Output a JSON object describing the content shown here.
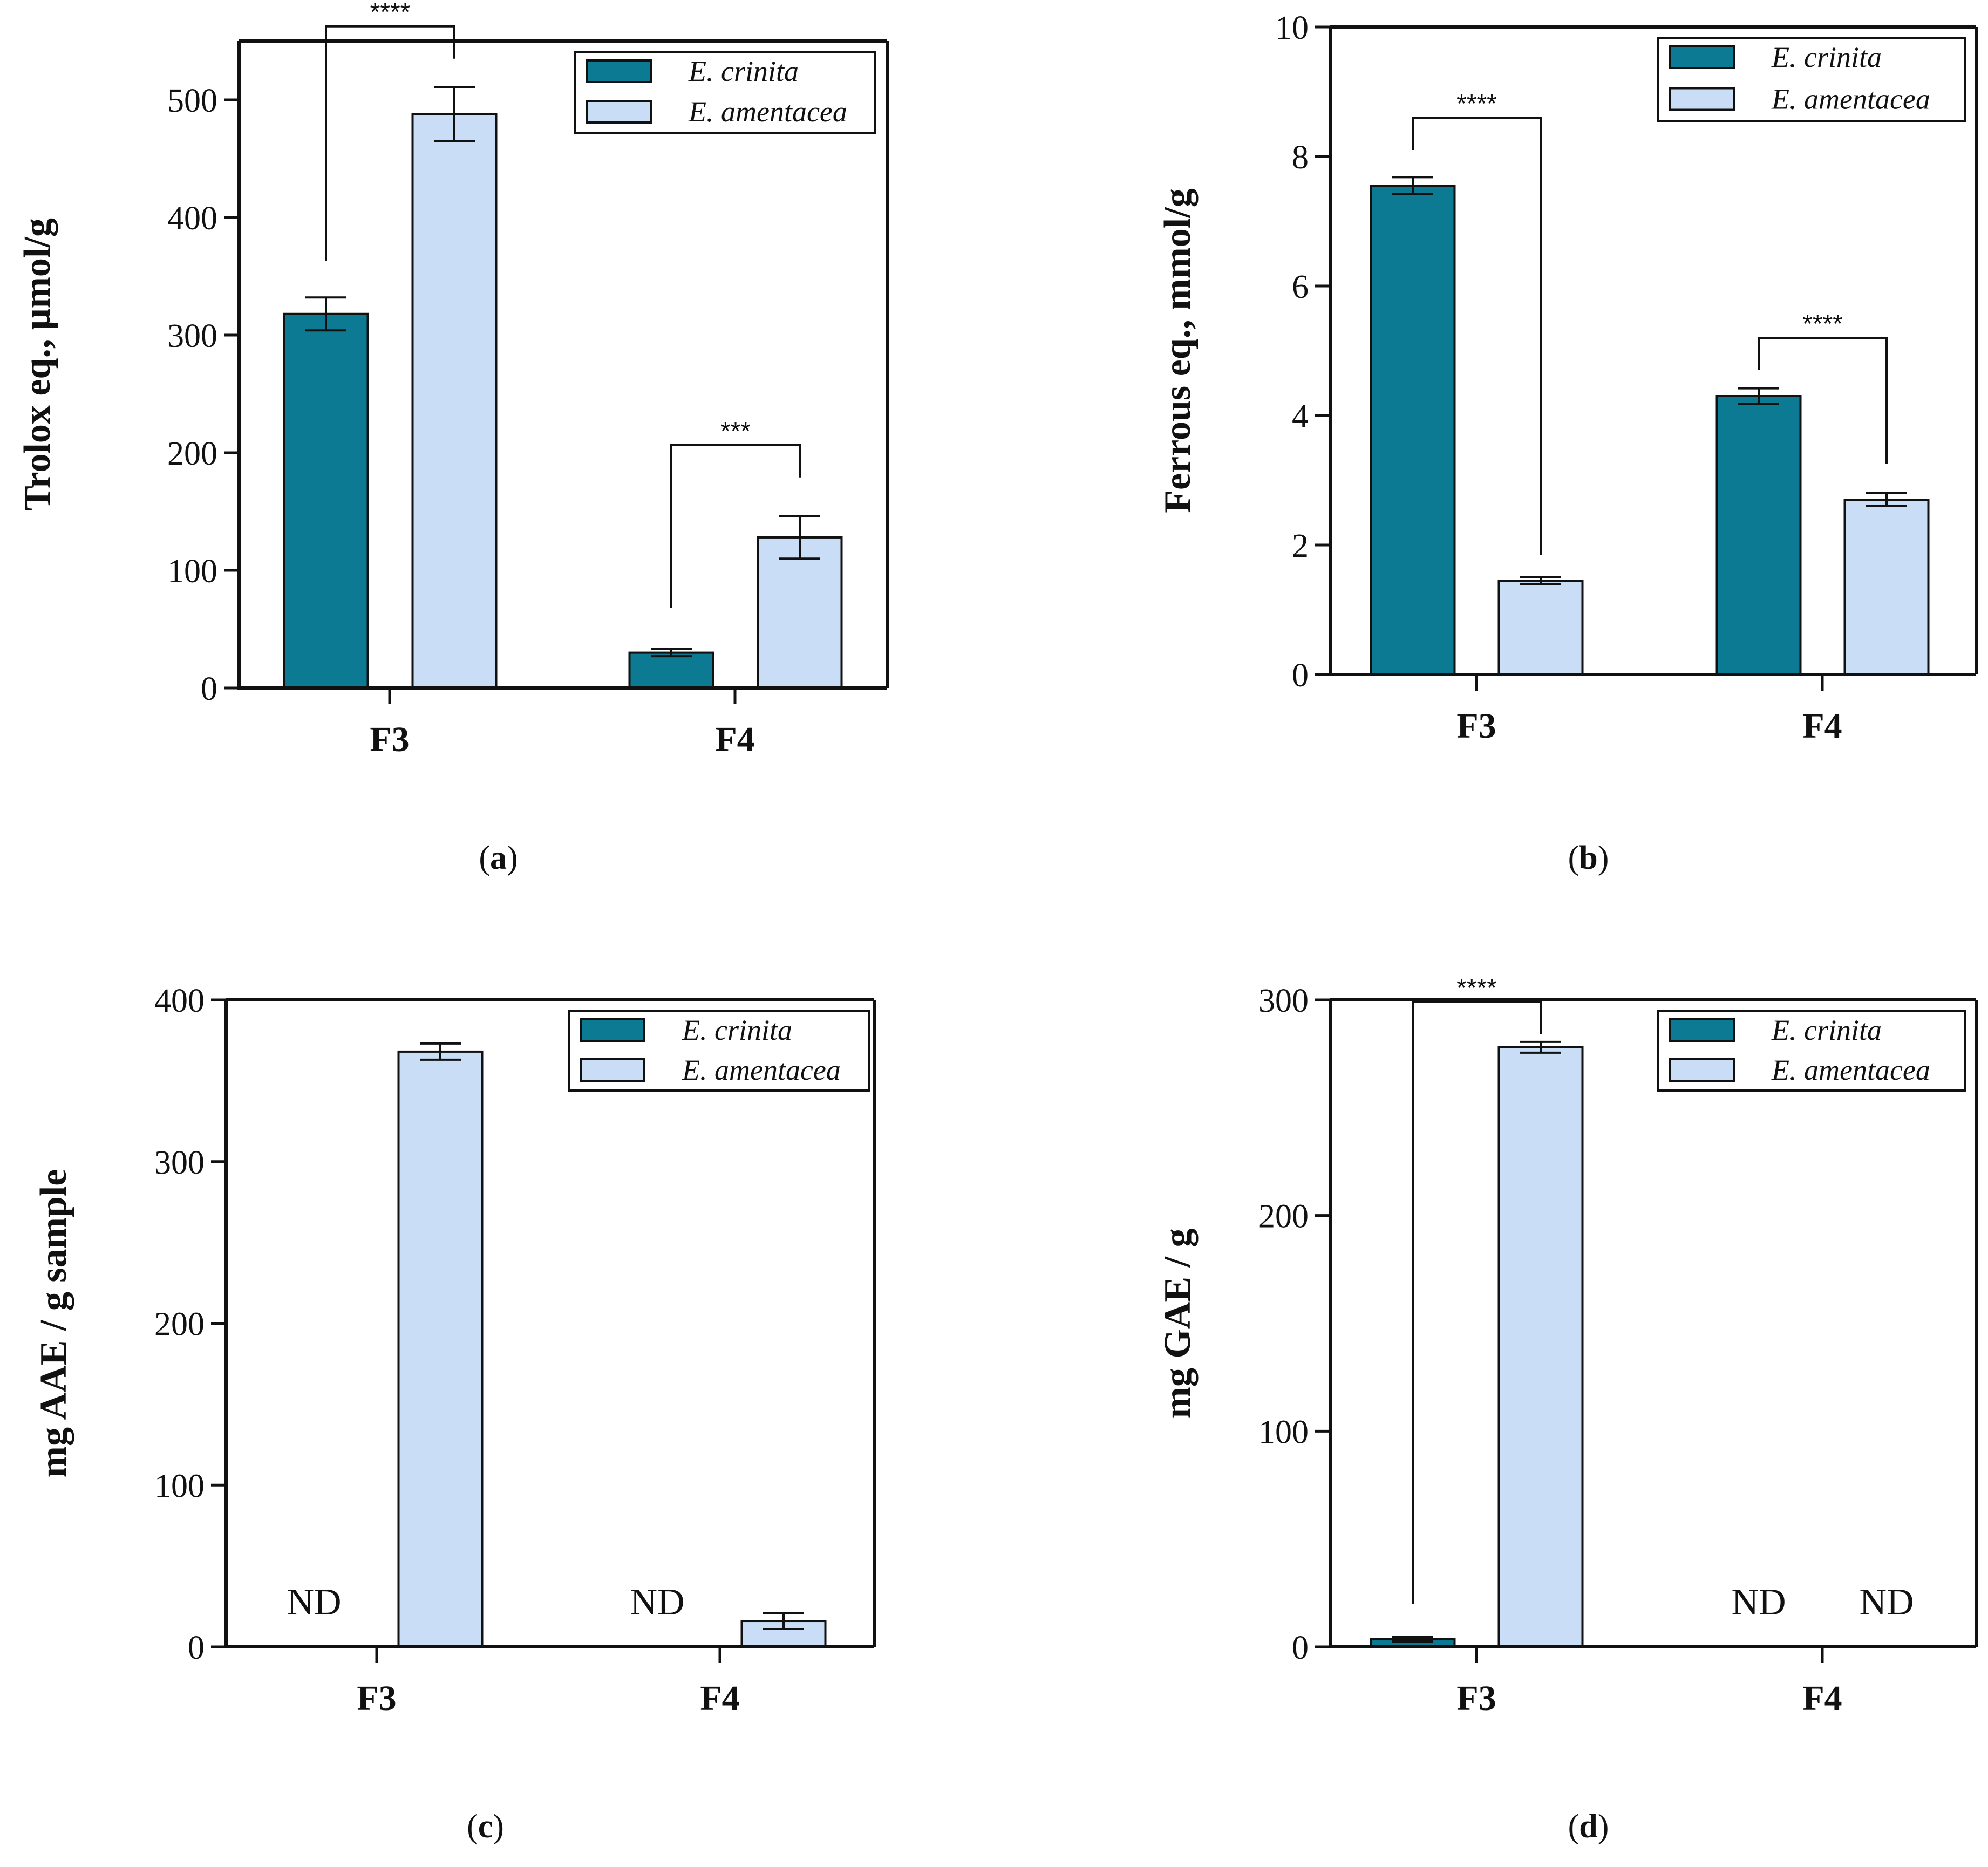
{
  "colors": {
    "crinita": "#0b7a92",
    "amentacea": "#c9def6",
    "stroke": "#111111"
  },
  "chart_data": [
    {
      "id": "a",
      "type": "bar",
      "panel_label": "a",
      "ylabel": "Trolox eq., μmol/g",
      "ylim": [
        0,
        550
      ],
      "ticks": [
        0,
        100,
        200,
        300,
        400,
        500
      ],
      "categories": [
        "F3",
        "F4"
      ],
      "legend": [
        "E. crinita",
        "E. amentacea"
      ],
      "series": [
        {
          "name": "E. crinita",
          "values": [
            318,
            30
          ],
          "errors": [
            14,
            3
          ]
        },
        {
          "name": "E. amentacea",
          "values": [
            488,
            128
          ],
          "errors": [
            23,
            18
          ]
        }
      ],
      "annotations": [
        {
          "text": "****",
          "category": 0,
          "from": 0,
          "to": 1,
          "start_y": [
            363,
            535
          ]
        },
        {
          "text": "***",
          "category": 1,
          "from": 0,
          "to": 1,
          "start_y": [
            68,
            179
          ]
        }
      ],
      "nd": []
    },
    {
      "id": "b",
      "type": "bar",
      "panel_label": "b",
      "ylabel": "Ferrous eq., mmol/g",
      "ylim": [
        0,
        10
      ],
      "ticks": [
        0,
        2,
        4,
        6,
        8,
        10
      ],
      "categories": [
        "F3",
        "F4"
      ],
      "legend": [
        "E. crinita",
        "E. amentacea"
      ],
      "series": [
        {
          "name": "E. crinita",
          "values": [
            7.55,
            4.3
          ],
          "errors": [
            0.13,
            0.12
          ]
        },
        {
          "name": "E. amentacea",
          "values": [
            1.45,
            2.7
          ],
          "errors": [
            0.05,
            0.1
          ]
        }
      ],
      "annotations": [
        {
          "text": "****",
          "category": 0,
          "from": 0,
          "to": 1,
          "start_y": [
            8.1,
            1.85
          ]
        },
        {
          "text": "****",
          "category": 1,
          "from": 0,
          "to": 1,
          "start_y": [
            4.7,
            3.25
          ]
        }
      ],
      "nd": []
    },
    {
      "id": "c",
      "type": "bar",
      "panel_label": "c",
      "ylabel": "mg AAE / g sample",
      "ylim": [
        0,
        400
      ],
      "ticks": [
        0,
        100,
        200,
        300,
        400
      ],
      "categories": [
        "F3",
        "F4"
      ],
      "legend": [
        "E. crinita",
        "E. amentacea"
      ],
      "series": [
        {
          "name": "E. crinita",
          "values": [
            0,
            0
          ],
          "errors": [
            0,
            0
          ]
        },
        {
          "name": "E. amentacea",
          "values": [
            368,
            16
          ],
          "errors": [
            5,
            5
          ]
        }
      ],
      "annotations": [],
      "nd": [
        {
          "text": "ND",
          "category": 0,
          "series": 0
        },
        {
          "text": "ND",
          "category": 1,
          "series": 0
        }
      ]
    },
    {
      "id": "d",
      "type": "bar",
      "panel_label": "d",
      "ylabel": "mg GAE / g",
      "ylim": [
        0,
        300
      ],
      "ticks": [
        0,
        100,
        200,
        300
      ],
      "categories": [
        "F3",
        "F4"
      ],
      "legend": [
        "E. crinita",
        "E. amentacea"
      ],
      "series": [
        {
          "name": "E. crinita",
          "values": [
            3.5,
            0
          ],
          "errors": [
            1,
            0
          ]
        },
        {
          "name": "E. amentacea",
          "values": [
            278,
            0
          ],
          "errors": [
            2.5,
            0
          ]
        }
      ],
      "annotations": [
        {
          "text": "****",
          "category": 0,
          "from": 0,
          "to": 1,
          "start_y": [
            20,
            284
          ]
        }
      ],
      "nd": [
        {
          "text": "ND",
          "category": 1,
          "series": 0
        },
        {
          "text": "ND",
          "category": 1,
          "series": 1
        }
      ]
    }
  ]
}
